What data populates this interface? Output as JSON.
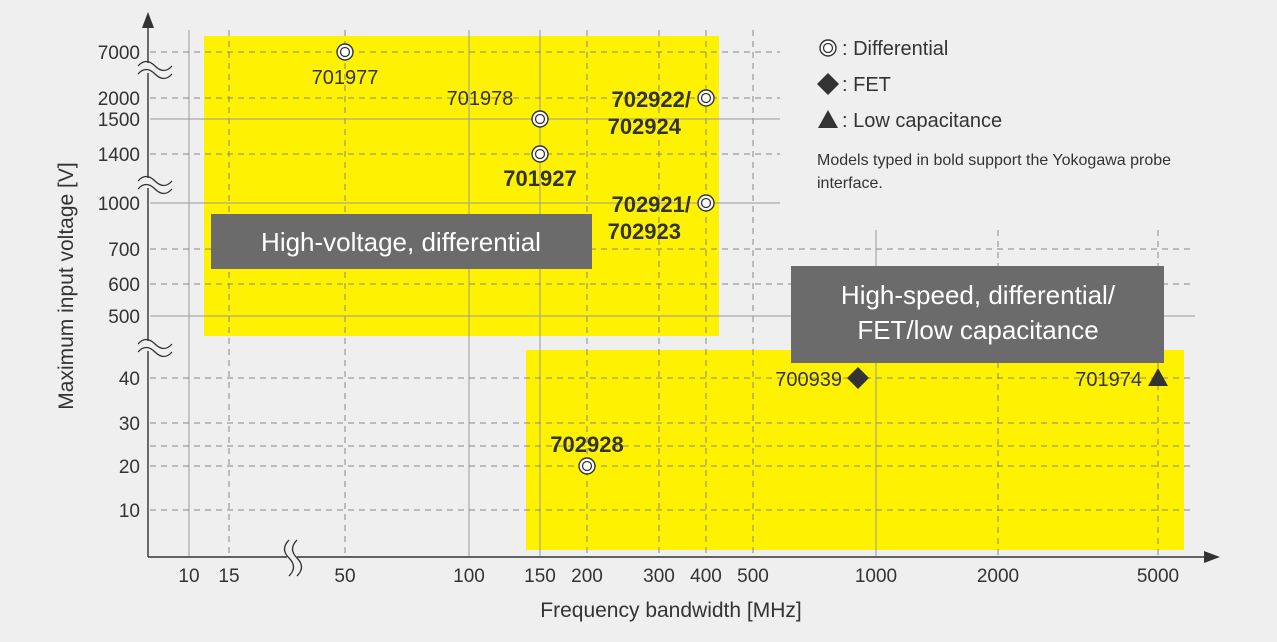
{
  "chart_data": {
    "type": "scatter",
    "xlabel": "Frequency bandwidth [MHz]",
    "ylabel": "Maximum input voltage [V]",
    "x_scale": "log (broken axis)",
    "y_scale": "broken axis",
    "grid": true,
    "x_ticks": [
      "10",
      "15",
      "50",
      "100",
      "150",
      "200",
      "300",
      "400",
      "500",
      "1000",
      "2000",
      "5000"
    ],
    "y_ticks": [
      "7000",
      "2000",
      "1500",
      "1400",
      "1000",
      "700",
      "600",
      "500",
      "40",
      "30",
      "20",
      "10"
    ],
    "regions": [
      {
        "label": "High-voltage, differential"
      },
      {
        "label_lines": [
          "High-speed, differential/",
          "FET/low capacitance"
        ]
      }
    ],
    "points": [
      {
        "model": "701977",
        "bandwidth": 50,
        "voltage": 7000,
        "marker": "differential",
        "bold": false
      },
      {
        "model": "701978",
        "bandwidth": 150,
        "voltage": 1500,
        "marker": "differential",
        "bold": false
      },
      {
        "model_lines": [
          "702922/",
          "702924"
        ],
        "bandwidth": 400,
        "voltage": 2000,
        "marker": "differential",
        "bold": true
      },
      {
        "model": "701927",
        "bandwidth": 150,
        "voltage": 1400,
        "marker": "differential",
        "bold": true
      },
      {
        "model_lines": [
          "702921/",
          "702923"
        ],
        "bandwidth": 400,
        "voltage": 1000,
        "marker": "differential",
        "bold": true
      },
      {
        "model": "700939",
        "bandwidth": 900,
        "voltage": 40,
        "marker": "fet",
        "bold": false
      },
      {
        "model": "701974",
        "bandwidth": 5000,
        "voltage": 40,
        "marker": "low-capacitance",
        "bold": false
      },
      {
        "model": "702928",
        "bandwidth": 200,
        "voltage": 20,
        "marker": "differential",
        "bold": true
      }
    ],
    "legend": {
      "placement": "top-right",
      "items": [
        {
          "symbol": "◎",
          "text": ": Differential"
        },
        {
          "symbol": "◆",
          "text": ": FET"
        },
        {
          "symbol": "▲",
          "text": ": Low capacitance"
        }
      ],
      "note_lines": [
        "Models typed in bold support the Yokogawa probe",
        "interface."
      ]
    },
    "colors": {
      "region_fill": "#fff200",
      "label_box": "#6b6b6b",
      "text": "#333333",
      "background": "#efefef"
    }
  }
}
